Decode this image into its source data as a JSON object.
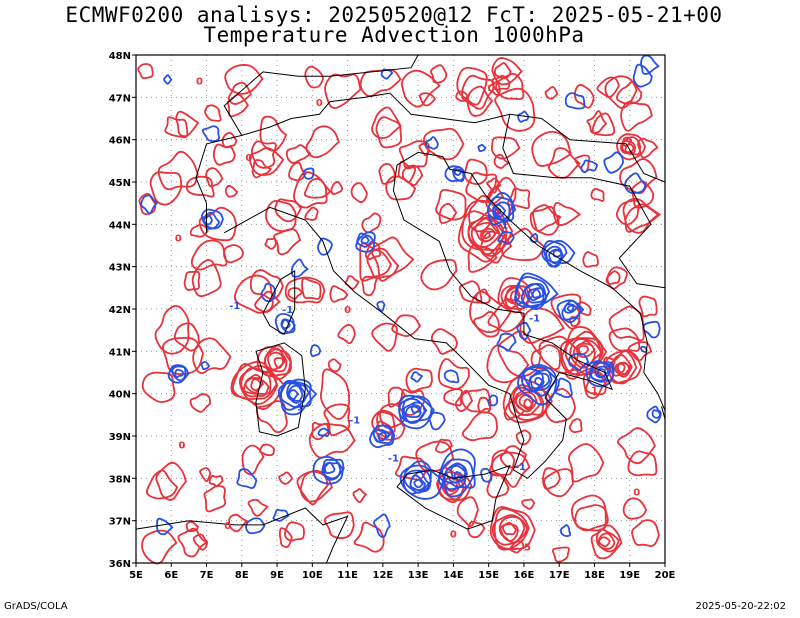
{
  "header": {
    "title_line1": "ECMWF0200 analisys: 20250520@12 FcT: 2025-05-21+00",
    "title_line2": "Temperature Advection 1000hPa"
  },
  "footer": {
    "left": "GrADS/COLA",
    "right": "2025-05-20-22:02"
  },
  "map": {
    "lon_range": [
      5,
      20
    ],
    "lat_range": [
      36,
      48
    ],
    "lon_ticks": [
      "5E",
      "6E",
      "7E",
      "8E",
      "9E",
      "10E",
      "11E",
      "12E",
      "13E",
      "14E",
      "15E",
      "16E",
      "17E",
      "18E",
      "19E",
      "20E"
    ],
    "lat_ticks": [
      "36N",
      "37N",
      "38N",
      "39N",
      "40N",
      "41N",
      "42N",
      "43N",
      "44N",
      "45N",
      "46N",
      "47N",
      "48N"
    ],
    "grid": "dotted",
    "colors": {
      "warm_advection": "#e8323c",
      "cold_advection": "#2850e6",
      "coastline": "#000000",
      "grid": "#9a9a9a"
    },
    "contour_labels": [
      "0",
      "-1",
      "1",
      "2",
      "5"
    ]
  }
}
